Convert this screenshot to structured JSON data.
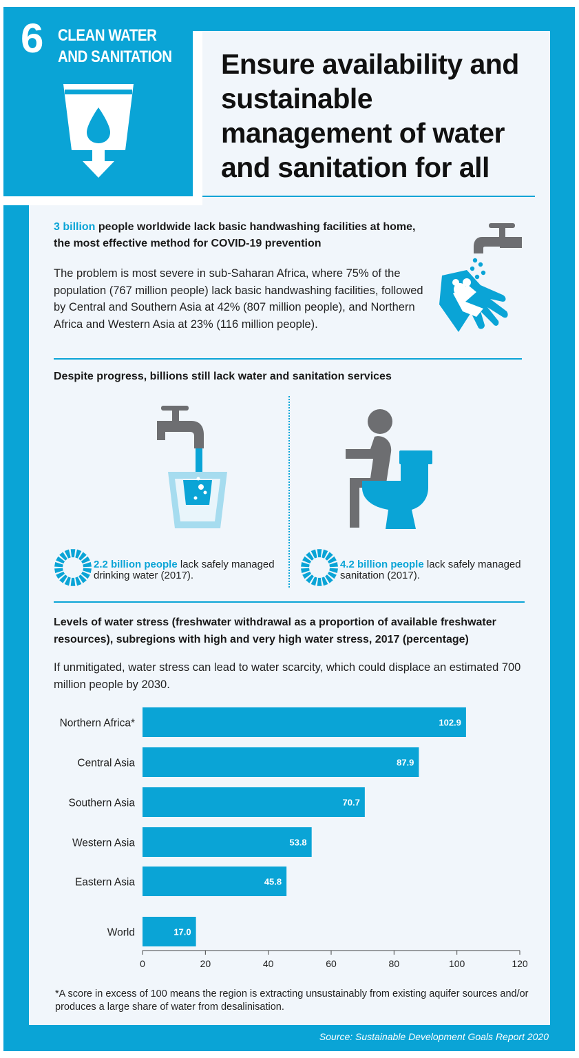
{
  "goal": {
    "number": "6",
    "name_line1": "CLEAN WATER",
    "name_line2": "AND SANITATION"
  },
  "title": "Ensure availability and sustainable management of water and sanitation for all",
  "handwashing": {
    "highlight": "3 billion",
    "lead_rest": " people worldwide lack basic handwashing facilities at home, the most effective method for COVID-19 prevention",
    "body": "The problem is most severe in sub-Saharan Africa, where 75% of the population (767 million people) lack basic handwashing facilities, followed by Central and Southern Asia at 42% (807 million people), and Northern Africa and Western Asia at 23% (116 million people)."
  },
  "services": {
    "heading": "Despite progress, billions still lack water and sanitation services",
    "water": {
      "highlight": "2.2 billion people",
      "rest": " lack safely managed drinking water (2017)."
    },
    "sanitation": {
      "highlight": "4.2 billion people",
      "rest": " lack safely managed sanitation (2017)."
    }
  },
  "chart_heading": "Levels of water stress (freshwater withdrawal as a proportion of available freshwater resources), subregions with high and very high water stress, 2017 (percentage)",
  "chart_note": "If unmitigated, water stress can lead to water scarcity, which could displace an estimated 700 million people by 2030.",
  "footnote": "*A score in excess of 100 means the region is extracting unsustainably from existing aquifer sources and/or produces a large share of water from desalinisation.",
  "source": "Source: Sustainable Development Goals Report 2020",
  "colors": {
    "accent": "#0aa4d6",
    "panel": "#f1f6fb",
    "icon_gray": "#6d6e71"
  },
  "chart_data": {
    "type": "bar",
    "orientation": "horizontal",
    "categories": [
      "Northern Africa*",
      "Central Asia",
      "Southern Asia",
      "Western Asia",
      "Eastern Asia",
      "World"
    ],
    "values": [
      102.9,
      87.9,
      70.7,
      53.8,
      45.8,
      17.0
    ],
    "value_labels": [
      "102.9",
      "87.9",
      "70.7",
      "53.8",
      "45.8",
      "17.0"
    ],
    "xlim": [
      0,
      120
    ],
    "xticks": [
      "0",
      "20",
      "40",
      "60",
      "80",
      "100",
      "120"
    ],
    "xlabel": "",
    "ylabel": "",
    "grid": false,
    "legend": "none"
  }
}
